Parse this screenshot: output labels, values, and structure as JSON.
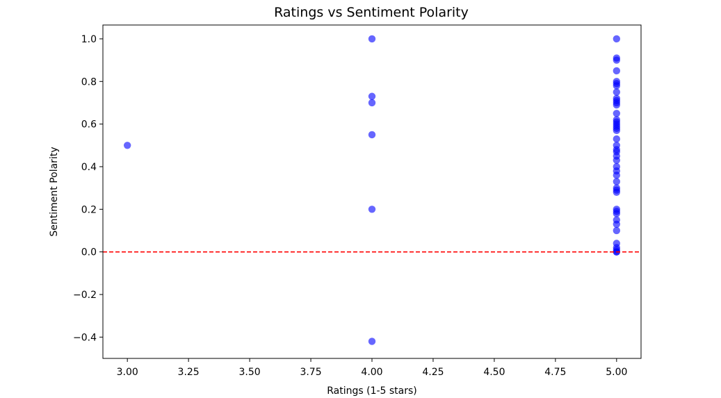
{
  "chart_data": {
    "type": "scatter",
    "title": "Ratings vs Sentiment Polarity",
    "xlabel": "Ratings (1-5 stars)",
    "ylabel": "Sentiment Polarity",
    "xlim": [
      2.9,
      5.1
    ],
    "ylim": [
      -0.5,
      1.065
    ],
    "xticks": [
      3.0,
      3.25,
      3.5,
      3.75,
      4.0,
      4.25,
      4.5,
      4.75,
      5.0
    ],
    "xtick_labels": [
      "3.00",
      "3.25",
      "3.50",
      "3.75",
      "4.00",
      "4.25",
      "4.50",
      "4.75",
      "5.00"
    ],
    "yticks": [
      -0.4,
      -0.2,
      0.0,
      0.2,
      0.4,
      0.6,
      0.8,
      1.0
    ],
    "ytick_labels": [
      "−0.4",
      "−0.2",
      "0.0",
      "0.2",
      "0.4",
      "0.6",
      "0.8",
      "1.0"
    ],
    "grid": false,
    "point_color": "#0000ff",
    "reference_line": {
      "y": 0.0,
      "color": "#ff0000",
      "style": "dashed"
    },
    "series": [
      {
        "x": [
          3,
          4,
          4,
          4,
          4,
          4,
          4,
          5,
          5,
          5,
          5,
          5,
          5,
          5,
          5,
          5,
          5,
          5,
          5,
          5,
          5,
          5,
          5,
          5,
          5,
          5,
          5,
          5,
          5,
          5,
          5,
          5,
          5,
          5,
          5,
          5,
          5,
          5,
          5,
          5,
          5,
          5,
          5,
          5,
          5,
          5,
          5,
          5,
          5,
          5
        ],
        "y": [
          0.5,
          1.0,
          0.73,
          0.7,
          0.55,
          0.2,
          -0.42,
          1.0,
          0.91,
          0.9,
          0.85,
          0.8,
          0.78,
          0.75,
          0.72,
          0.7,
          0.65,
          0.62,
          0.6,
          0.58,
          0.57,
          0.53,
          0.5,
          0.48,
          0.47,
          0.43,
          0.4,
          0.38,
          0.36,
          0.33,
          0.3,
          0.28,
          0.2,
          0.18,
          0.15,
          0.13,
          0.1,
          0.04,
          0.0,
          0.0,
          0.61,
          0.59,
          0.79,
          0.71,
          0.45,
          0.29,
          0.19,
          0.01,
          0.02,
          0.69
        ]
      }
    ]
  }
}
